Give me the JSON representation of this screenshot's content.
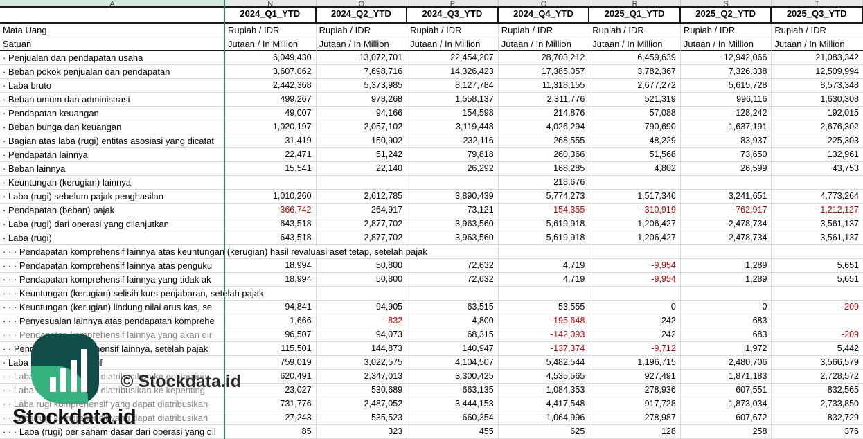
{
  "columns": {
    "letters": [
      "A",
      "N",
      "O",
      "P",
      "Q",
      "R",
      "S",
      "T"
    ]
  },
  "header": {
    "periods": [
      "2024_Q1_YTD",
      "2024_Q2_YTD",
      "2024_Q3_YTD",
      "2024_Q4_YTD",
      "2025_Q1_YTD",
      "2025_Q2_YTD",
      "2025_Q3_YTD"
    ],
    "meta_rows": [
      {
        "label": "Mata Uang",
        "value": "Rupiah / IDR"
      },
      {
        "label": "Satuan",
        "value": "Jutaan / In Million"
      }
    ]
  },
  "rows": [
    {
      "label": "· Penjualan dan pendapatan usaha",
      "values": [
        "6,049,430",
        "13,072,701",
        "22,454,207",
        "28,703,212",
        "6,459,639",
        "12,942,066",
        "21,083,342"
      ]
    },
    {
      "label": "· Beban pokok penjualan dan pendapatan",
      "values": [
        "3,607,062",
        "7,698,716",
        "14,326,423",
        "17,385,057",
        "3,782,367",
        "7,326,338",
        "12,509,994"
      ]
    },
    {
      "label": "· Laba bruto",
      "values": [
        "2,442,368",
        "5,373,985",
        "8,127,784",
        "11,318,155",
        "2,677,272",
        "5,615,728",
        "8,573,348"
      ]
    },
    {
      "label": "· Beban umum dan administrasi",
      "values": [
        "499,267",
        "978,268",
        "1,558,137",
        "2,311,776",
        "521,319",
        "996,116",
        "1,630,308"
      ]
    },
    {
      "label": "· Pendapatan keuangan",
      "values": [
        "49,007",
        "94,166",
        "154,598",
        "214,876",
        "57,088",
        "128,242",
        "192,015"
      ]
    },
    {
      "label": "· Beban bunga dan keuangan",
      "values": [
        "1,020,197",
        "2,057,102",
        "3,119,448",
        "4,026,294",
        "790,690",
        "1,637,191",
        "2,676,302"
      ]
    },
    {
      "label": "· Bagian atas laba (rugi) entitas asosiasi yang dicatat",
      "values": [
        "31,419",
        "150,902",
        "232,116",
        "268,555",
        "48,229",
        "83,937",
        "225,303"
      ]
    },
    {
      "label": "· Pendapatan lainnya",
      "values": [
        "22,471",
        "51,242",
        "79,818",
        "260,366",
        "51,568",
        "73,650",
        "132,961"
      ]
    },
    {
      "label": "· Beban lainnya",
      "values": [
        "15,541",
        "22,140",
        "26,292",
        "168,285",
        "4,802",
        "26,599",
        "43,753"
      ]
    },
    {
      "label": "· Keuntungan (kerugian) lainnya",
      "values": [
        "",
        "",
        "",
        "218,676",
        "",
        "",
        ""
      ]
    },
    {
      "label": "· Laba (rugi) sebelum pajak penghasilan",
      "values": [
        "1,010,260",
        "2,612,785",
        "3,890,439",
        "5,774,273",
        "1,517,346",
        "3,241,651",
        "4,773,264"
      ]
    },
    {
      "label": "· Pendapatan (beban) pajak",
      "values": [
        "-366,742",
        "264,917",
        "73,121",
        "-154,355",
        "-310,919",
        "-762,917",
        "-1,212,127"
      ]
    },
    {
      "label": "· Laba (rugi) dari operasi yang dilanjutkan",
      "values": [
        "643,518",
        "2,877,702",
        "3,963,560",
        "5,619,918",
        "1,206,427",
        "2,478,734",
        "3,561,137"
      ]
    },
    {
      "label": "· Laba (rugi)",
      "values": [
        "643,518",
        "2,877,702",
        "3,963,560",
        "5,619,918",
        "1,206,427",
        "2,478,734",
        "3,561,137"
      ]
    },
    {
      "label": "· · · Pendapatan komprehensif lainnya atas keuntungan (kerugian) hasil revaluasi aset tetap, setelah pajak",
      "overflow": true,
      "values": [
        "",
        "",
        "",
        "",
        "",
        "",
        ""
      ]
    },
    {
      "label": "· · · Pendapatan komprehensif lainnya atas penguku",
      "values": [
        "18,994",
        "50,800",
        "72,632",
        "4,719",
        "-9,954",
        "1,289",
        "5,651"
      ]
    },
    {
      "label": "· · · Pendapatan komprehensif lainnya yang tidak ak",
      "values": [
        "18,994",
        "50,800",
        "72,632",
        "4,719",
        "-9,954",
        "1,289",
        "5,651"
      ]
    },
    {
      "label": "· · · Keuntungan (kerugian) selisih kurs penjabaran, setelah pajak",
      "overflow": true,
      "values": [
        "",
        "",
        "",
        "",
        "",
        "",
        ""
      ]
    },
    {
      "label": "· · · Keuntungan (kerugian) lindung nilai arus kas, se",
      "values": [
        "94,841",
        "94,905",
        "63,515",
        "53,555",
        "0",
        "0",
        "-209"
      ]
    },
    {
      "label": "· · · Penyesuaian lainnya atas pendapatan komprehe",
      "values": [
        "1,666",
        "-832",
        "4,800",
        "-195,648",
        "242",
        "683",
        ""
      ]
    },
    {
      "label": "· · · Pendapatan komprehensif lainnya yang akan dir",
      "gray": true,
      "values": [
        "96,507",
        "94,073",
        "68,315",
        "-142,093",
        "242",
        "683",
        "-209"
      ]
    },
    {
      "label": "· · Pendapatan komprehensif lainnya, setelah pajak",
      "values": [
        "115,501",
        "144,873",
        "140,947",
        "-137,374",
        "-9,712",
        "1,972",
        "5,442"
      ]
    },
    {
      "label": "· Laba rugi komprehensif",
      "values": [
        "759,019",
        "3,022,575",
        "4,104,507",
        "5,482,544",
        "1,196,715",
        "2,480,706",
        "3,566,579"
      ]
    },
    {
      "label": "· · Laba rugi yang dapat diatribusikan ke entitas ind",
      "gray": true,
      "values": [
        "620,491",
        "2,347,013",
        "3,300,425",
        "4,535,565",
        "927,491",
        "1,871,183",
        "2,728,572"
      ]
    },
    {
      "label": "· · Laba rugi yang dapat diatribusikan ke kepenting",
      "gray": true,
      "values": [
        "23,027",
        "530,689",
        "663,135",
        "1,084,353",
        "278,936",
        "607,551",
        "832,565"
      ]
    },
    {
      "label": "· · Laba rugi komprehensif yang dapat diatribusikan",
      "gray": true,
      "values": [
        "731,776",
        "2,487,052",
        "3,444,153",
        "4,417,548",
        "917,728",
        "1,873,034",
        "2,733,850"
      ]
    },
    {
      "label": "· · Laba rugi komprehensif yang dapat diatribusikan",
      "gray": true,
      "values": [
        "27,243",
        "535,523",
        "660,354",
        "1,064,996",
        "278,987",
        "607,672",
        "832,729"
      ]
    },
    {
      "label": "· · · Laba (rugi) per saham dasar dari operasi yang dil",
      "values": [
        "85",
        "323",
        "455",
        "625",
        "128",
        "258",
        "376"
      ]
    }
  ],
  "watermark": {
    "brand": "Stockdata.id",
    "copyright": "© Stockdata.id"
  },
  "colors": {
    "accent_green": "#2e8b57",
    "negative_red": "#c00000",
    "gray_text": "#848484",
    "logo_teal": "#114e4a",
    "logo_green": "#35b27e",
    "letter_selected_bg": "#d8e8dc"
  }
}
